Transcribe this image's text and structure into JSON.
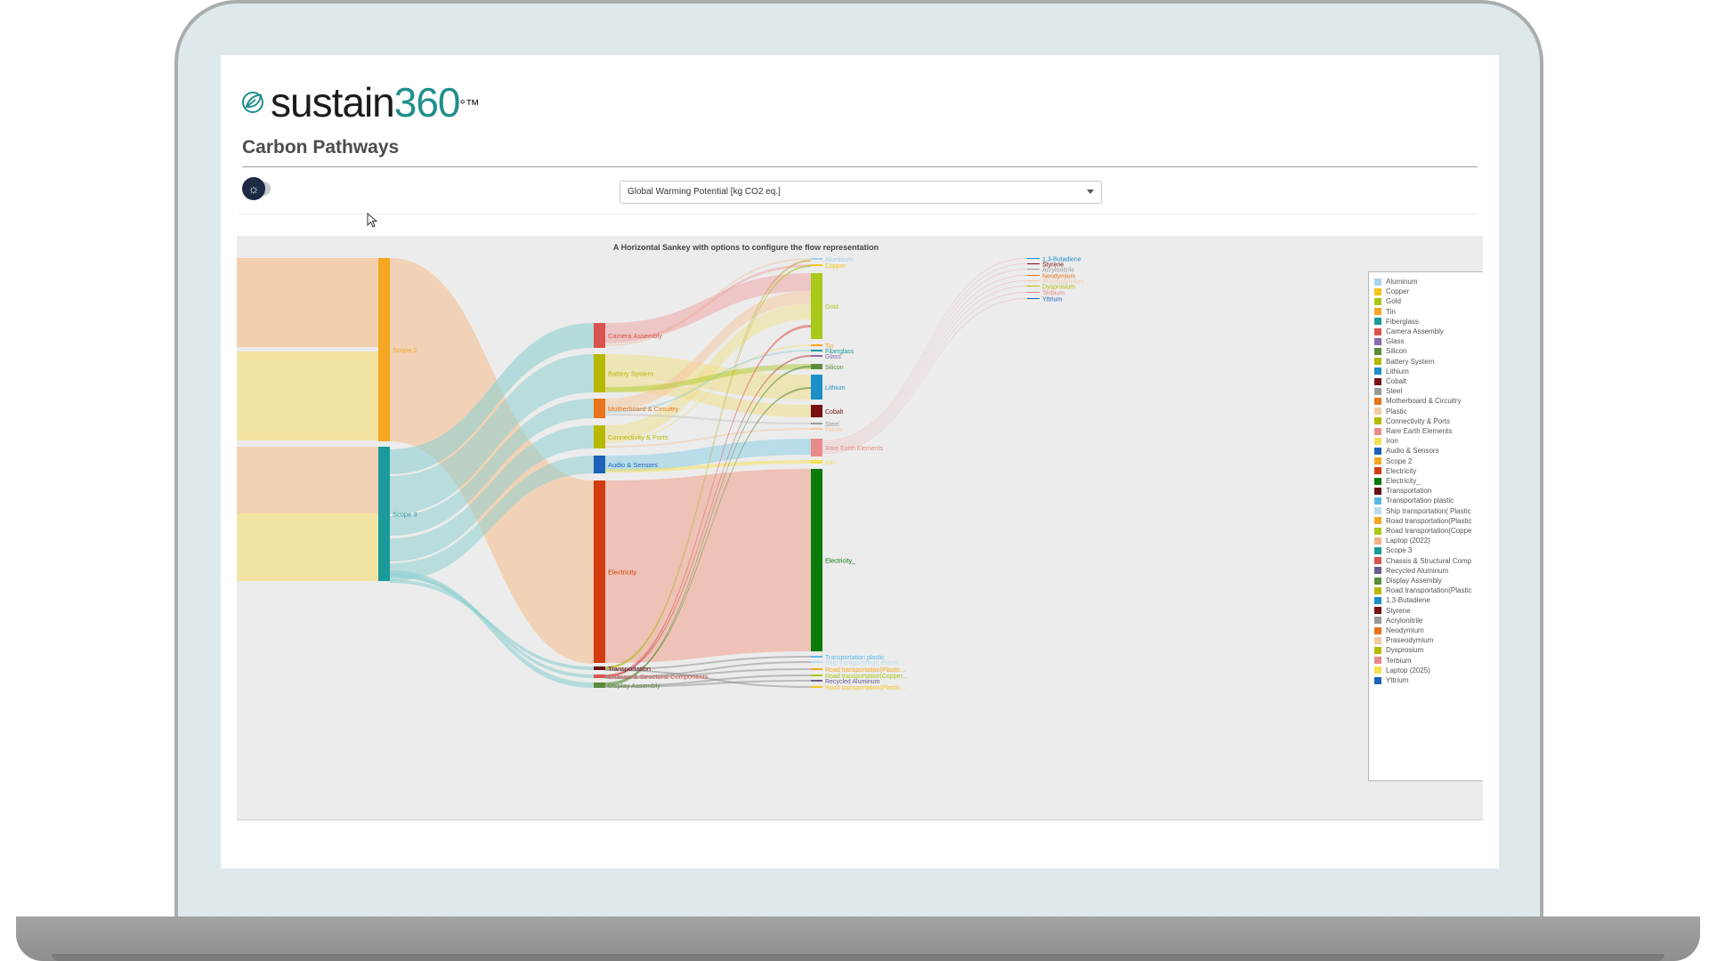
{
  "app": {
    "brand_name": "sustain",
    "brand_number": "360",
    "brand_suffix": "°™",
    "page_title": "Carbon Pathways"
  },
  "controls": {
    "metric_dropdown": {
      "selected": "Global Warming Potential [kg CO2 eq.]"
    }
  },
  "chart_data": {
    "type": "sankey",
    "title": "A Horizontal Sankey with options to configure the flow representation",
    "nodes": [
      {
        "id": "laptop_2022",
        "label": "",
        "color": "#f3caa4"
      },
      {
        "id": "scope2",
        "label": "Scope 2",
        "color": "#f5a623"
      },
      {
        "id": "scope3",
        "label": "Scope 3",
        "color": "#1a9a9a"
      },
      {
        "id": "camera",
        "label": "Camera Assembly",
        "color": "#d9534f"
      },
      {
        "id": "battery",
        "label": "Battery System",
        "color": "#b8b800"
      },
      {
        "id": "motherboard",
        "label": "Motherboard & Circuitry",
        "color": "#e8741c"
      },
      {
        "id": "connectivity",
        "label": "Connectivity & Ports",
        "color": "#b8b800"
      },
      {
        "id": "audio",
        "label": "Audio & Sensors",
        "color": "#1a63b8"
      },
      {
        "id": "electricity",
        "label": "Electricity",
        "color": "#d33c0f"
      },
      {
        "id": "transportation",
        "label": "Transportation",
        "color": "#6b1010"
      },
      {
        "id": "chassis",
        "label": "Chassis & Structural Components",
        "color": "#d9534f"
      },
      {
        "id": "display",
        "label": "Display Assembly",
        "color": "#5a8c3a"
      },
      {
        "id": "aluminum",
        "label": "Aluminum",
        "color": "#9fd0ef"
      },
      {
        "id": "copper",
        "label": "Copper",
        "color": "#f5c518"
      },
      {
        "id": "gold",
        "label": "Gold",
        "color": "#a8c81a"
      },
      {
        "id": "tin",
        "label": "Tin",
        "color": "#f5a623"
      },
      {
        "id": "fiberglass",
        "label": "Fiberglass",
        "color": "#1a9a9a"
      },
      {
        "id": "glass",
        "label": "Glass",
        "color": "#8a6bab"
      },
      {
        "id": "silicon",
        "label": "Silicon",
        "color": "#5a8c3a"
      },
      {
        "id": "lithium",
        "label": "Lithium",
        "color": "#1a8fc8"
      },
      {
        "id": "cobalt",
        "label": "Cobalt",
        "color": "#7a1010"
      },
      {
        "id": "steel",
        "label": "Steel",
        "color": "#9a9a9a"
      },
      {
        "id": "plastic",
        "label": "Plastic",
        "color": "#f3caa4"
      },
      {
        "id": "rare_earth",
        "label": "Rare Earth Elements",
        "color": "#e88a8a"
      },
      {
        "id": "iron",
        "label": "Iron",
        "color": "#f5e050"
      },
      {
        "id": "electricity_",
        "label": "Electricity_",
        "color": "#0a7a0a"
      },
      {
        "id": "transportation_plastic",
        "label": "Transportation plastic",
        "color": "#5ab8e8"
      },
      {
        "id": "ship_transportation",
        "label": "Ship transportation( Plastic...",
        "color": "#b8dcf0"
      },
      {
        "id": "road_plastic",
        "label": "Road transportation(Plastic...",
        "color": "#f5a623"
      },
      {
        "id": "road_copper",
        "label": "Road transportation(Copper...",
        "color": "#a8c81a"
      },
      {
        "id": "recycled_aluminum",
        "label": "Recycled Aluminum",
        "color": "#6b5a8c"
      },
      {
        "id": "road_plastic2",
        "label": "Road transportation(Plastic...",
        "color": "#f5c518"
      },
      {
        "id": "butadiene",
        "label": "1,3-Butadiene",
        "color": "#1a8fc8"
      },
      {
        "id": "styrene",
        "label": "Styrene",
        "color": "#7a1010"
      },
      {
        "id": "acrylonitrile",
        "label": "Acrylonitrile",
        "color": "#9a9a9a"
      },
      {
        "id": "neodymium",
        "label": "Neodymium",
        "color": "#e8741c"
      },
      {
        "id": "praseodymium",
        "label": "Praseodymium",
        "color": "#f3caa4"
      },
      {
        "id": "dysprosium",
        "label": "Dysprosium",
        "color": "#b8b800"
      },
      {
        "id": "terbium",
        "label": "Terbium",
        "color": "#e88a8a"
      },
      {
        "id": "yttrium",
        "label": "Yttrium",
        "color": "#1a63b8"
      }
    ],
    "legend": [
      {
        "label": "Aluminum",
        "color": "#a8d4ef"
      },
      {
        "label": "Copper",
        "color": "#f5c518"
      },
      {
        "label": "Gold",
        "color": "#a8c81a"
      },
      {
        "label": "Tin",
        "color": "#f5a623"
      },
      {
        "label": "Fiberglass",
        "color": "#1a9a9a"
      },
      {
        "label": "Camera Assembly",
        "color": "#d9534f"
      },
      {
        "label": "Glass",
        "color": "#8a6bab"
      },
      {
        "label": "Silicon",
        "color": "#5a8c3a"
      },
      {
        "label": "Battery System",
        "color": "#b8b800"
      },
      {
        "label": "Lithium",
        "color": "#1a8fc8"
      },
      {
        "label": "Cobalt",
        "color": "#7a1010"
      },
      {
        "label": "Steel",
        "color": "#9a9a9a"
      },
      {
        "label": "Motherboard & Circuitry",
        "color": "#e8741c"
      },
      {
        "label": "Plastic",
        "color": "#f3caa4"
      },
      {
        "label": "Connectivity & Ports",
        "color": "#b8b800"
      },
      {
        "label": "Rare Earth Elements",
        "color": "#e88a8a"
      },
      {
        "label": "Iron",
        "color": "#f5e050"
      },
      {
        "label": "Audio & Sensors",
        "color": "#1a63b8"
      },
      {
        "label": "Scope 2",
        "color": "#f5a623"
      },
      {
        "label": "Electricity",
        "color": "#d33c0f"
      },
      {
        "label": "Electricity_",
        "color": "#0a7a0a"
      },
      {
        "label": "Transportation",
        "color": "#6b1010"
      },
      {
        "label": "Transportation plastic",
        "color": "#5ab8e8"
      },
      {
        "label": "Ship transportation( Plastic",
        "color": "#b8dcf0"
      },
      {
        "label": "Road transportation(Plastic",
        "color": "#f5a623"
      },
      {
        "label": "Road transportation(Coppe",
        "color": "#a8c81a"
      },
      {
        "label": "Laptop (2022)",
        "color": "#f3b088"
      },
      {
        "label": "Scope 3",
        "color": "#1a9a9a"
      },
      {
        "label": "Chassis & Structural Comp",
        "color": "#d9534f"
      },
      {
        "label": "Recycled Aluminum",
        "color": "#6b5a8c"
      },
      {
        "label": "Display Assembly",
        "color": "#5a8c3a"
      },
      {
        "label": "Road transportation(Plastic",
        "color": "#b8b800"
      },
      {
        "label": "1,3-Butadiene",
        "color": "#1a8fc8"
      },
      {
        "label": "Styrene",
        "color": "#7a1010"
      },
      {
        "label": "Acrylonitrile",
        "color": "#9a9a9a"
      },
      {
        "label": "Neodymium",
        "color": "#e8741c"
      },
      {
        "label": "Praseodymium",
        "color": "#f3caa4"
      },
      {
        "label": "Dysprosium",
        "color": "#b8b800"
      },
      {
        "label": "Terbium",
        "color": "#e88a8a"
      },
      {
        "label": "Laptop (2025)",
        "color": "#f5e050"
      },
      {
        "label": "Yttrium",
        "color": "#1a63b8"
      }
    ]
  }
}
